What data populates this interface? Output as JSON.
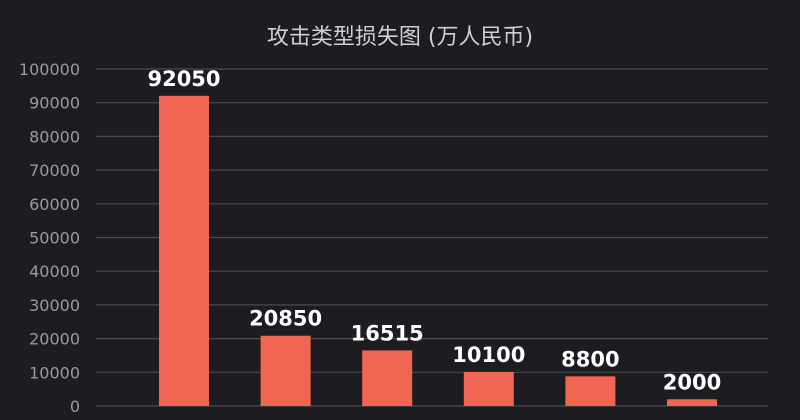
{
  "chart_data": {
    "type": "bar",
    "title": "攻击类型损失图 (万人民币)",
    "xlabel": "",
    "ylabel": "",
    "categories": [
      "",
      "",
      "",
      "",
      "",
      ""
    ],
    "values": [
      92050,
      20850,
      16515,
      10100,
      8800,
      2000
    ],
    "ylim": [
      0,
      100000
    ],
    "y_ticks": [
      0,
      10000,
      20000,
      30000,
      40000,
      50000,
      60000,
      70000,
      80000,
      90000,
      100000
    ],
    "grid": true,
    "legend": "none",
    "colors": {
      "bar": "#f26552",
      "background": "#1c1c21",
      "grid": "#4a4a52",
      "title": "#cfcfd4",
      "tick_label": "#9a9aa0",
      "data_label": "#ffffff"
    }
  }
}
